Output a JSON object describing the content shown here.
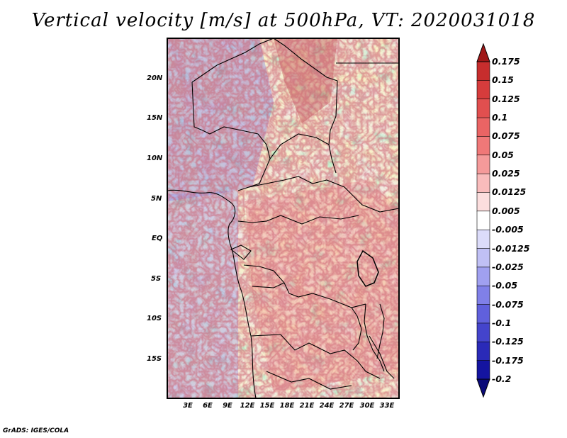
{
  "title": "Vertical velocity [m/s] at 500hPa, VT: 2020031018",
  "credit": "GrADS: IGES/COLA",
  "latitude_labels": [
    "20N",
    "15N",
    "10N",
    "5N",
    "EQ",
    "5S",
    "10S",
    "15S"
  ],
  "longitude_labels": [
    "3E",
    "6E",
    "9E",
    "12E",
    "15E",
    "18E",
    "21E",
    "24E",
    "27E",
    "30E",
    "33E"
  ],
  "colorbar": {
    "labels": [
      "0.175",
      "0.15",
      "0.125",
      "0.1",
      "0.075",
      "0.05",
      "0.025",
      "0.0125",
      "0.005",
      "-0.005",
      "-0.0125",
      "-0.025",
      "-0.05",
      "-0.075",
      "-0.1",
      "-0.125",
      "-0.175",
      "-0.2"
    ],
    "colors": [
      "#b41e1e",
      "#c72d2d",
      "#d63c3c",
      "#e14f4f",
      "#ea6464",
      "#f07878",
      "#f59a9a",
      "#f9bcbc",
      "#fcdede",
      "#ffffff",
      "#dcdcfa",
      "#c0c0f5",
      "#a0a0f0",
      "#8080e8",
      "#6060dc",
      "#4444cc",
      "#2a2ab8",
      "#1414a0",
      "#0a0a78"
    ]
  },
  "map_panel": {
    "fields": "shaded vertical velocity with country borders and coastlines"
  }
}
